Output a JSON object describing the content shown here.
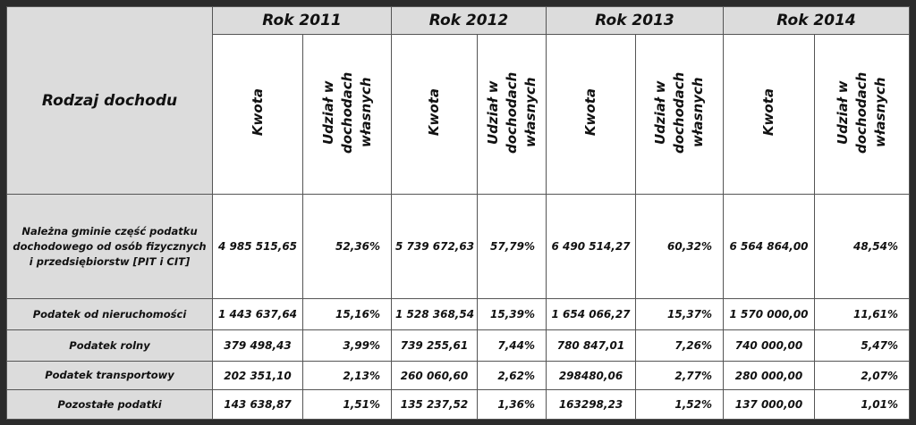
{
  "table": {
    "corner": "Rodzaj dochodu",
    "years": [
      "Rok 2011",
      "Rok 2012",
      "Rok 2013",
      "Rok 2014"
    ],
    "subheaders": [
      "Kwota",
      "Udział w dochodach własnych"
    ],
    "rows": [
      {
        "label": "Należna gminie część podatku dochodowego od osób fizycznych i przedsiębiorstw [PIT i CIT]",
        "cells": [
          "4 985 515,65",
          "52,36%",
          "5 739 672,63",
          "57,79%",
          "6 490 514,27",
          "60,32%",
          "6 564 864,00",
          "48,54%"
        ]
      },
      {
        "label": "Podatek od nieruchomości",
        "cells": [
          "1 443 637,64",
          "15,16%",
          "1 528 368,54",
          "15,39%",
          "1 654 066,27",
          "15,37%",
          "1 570 000,00",
          "11,61%"
        ]
      },
      {
        "label": "Podatek rolny",
        "cells": [
          "379 498,43",
          "3,99%",
          "739 255,61",
          "7,44%",
          "780 847,01",
          "7,26%",
          "740 000,00",
          "5,47%"
        ]
      },
      {
        "label": "Podatek transportowy",
        "cells": [
          "202 351,10",
          "2,13%",
          "260 060,60",
          "2,62%",
          "298480,06",
          "2,77%",
          "280 000,00",
          "2,07%"
        ]
      },
      {
        "label": "Pozostałe podatki",
        "cells": [
          "143 638,87",
          "1,51%",
          "135 237,52",
          "1,36%",
          "163298,23",
          "1,52%",
          "137 000,00",
          "1,01%"
        ]
      }
    ]
  }
}
